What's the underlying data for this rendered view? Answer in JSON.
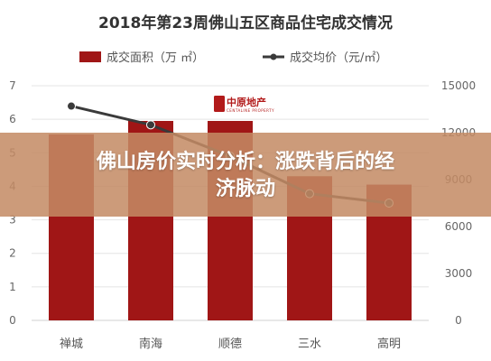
{
  "logo": {
    "text": "中原地产",
    "sub": "CENTALINE PROPERTY"
  },
  "banner": {
    "line1": "佛山房价实时分析：涨跌背后的经",
    "line2": "济脉动"
  },
  "chart_data": {
    "type": "bar",
    "title": "2018年第23周佛山五区商品住宅成交情况",
    "categories": [
      "禅城",
      "南海",
      "顺德",
      "三水",
      "高明"
    ],
    "series": [
      {
        "name": "成交面积（万 ㎡）",
        "type": "bar",
        "axis": "left",
        "color": "#a01616",
        "values": [
          5.55,
          5.95,
          5.95,
          4.3,
          4.05
        ]
      },
      {
        "name": "成交均价（元/㎡）",
        "type": "line",
        "axis": "right",
        "color": "#3a3a3a",
        "values": [
          13700,
          12500,
          10500,
          8100,
          7500
        ]
      }
    ],
    "y_left": {
      "min": 0,
      "max": 7,
      "ticks": [
        0,
        1,
        2,
        3,
        4,
        5,
        6,
        7
      ]
    },
    "y_right": {
      "min": 0,
      "max": 15000,
      "ticks": [
        0,
        3000,
        6000,
        9000,
        12000,
        15000
      ]
    },
    "legend_position": "top",
    "grid": true
  }
}
